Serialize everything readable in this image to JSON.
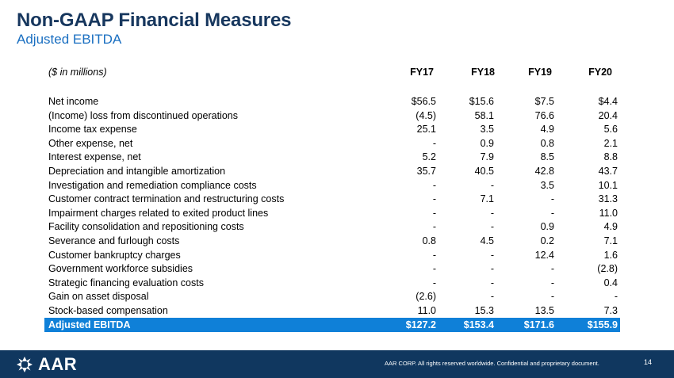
{
  "header": {
    "title": "Non-GAAP Financial Measures",
    "subtitle": "Adjusted EBITDA"
  },
  "table": {
    "unit_label": "($ in millions)",
    "columns": [
      "FY17",
      "FY18",
      "FY19",
      "FY20"
    ],
    "rows": [
      {
        "label": "Net income",
        "values": [
          "$56.5",
          "$15.6",
          "$7.5",
          "$4.4"
        ]
      },
      {
        "label": "(Income) loss from discontinued operations",
        "values": [
          "(4.5)",
          "58.1",
          "76.6",
          "20.4"
        ]
      },
      {
        "label": "Income tax expense",
        "values": [
          "25.1",
          "3.5",
          "4.9",
          "5.6"
        ]
      },
      {
        "label": "Other expense, net",
        "values": [
          "-",
          "0.9",
          "0.8",
          "2.1"
        ]
      },
      {
        "label": "Interest expense, net",
        "values": [
          "5.2",
          "7.9",
          "8.5",
          "8.8"
        ]
      },
      {
        "label": "Depreciation and intangible amortization",
        "values": [
          "35.7",
          "40.5",
          "42.8",
          "43.7"
        ]
      },
      {
        "label": "Investigation and remediation compliance costs",
        "values": [
          "-",
          "-",
          "3.5",
          "10.1"
        ]
      },
      {
        "label": "Customer contract termination and restructuring costs",
        "values": [
          "-",
          "7.1",
          "-",
          "31.3"
        ]
      },
      {
        "label": "Impairment charges related to exited product lines",
        "values": [
          "-",
          "-",
          "-",
          "11.0"
        ]
      },
      {
        "label": "Facility consolidation and repositioning costs",
        "values": [
          "-",
          "-",
          "0.9",
          "4.9"
        ]
      },
      {
        "label": "Severance and furlough costs",
        "values": [
          "0.8",
          "4.5",
          "0.2",
          "7.1"
        ]
      },
      {
        "label": "Customer bankruptcy charges",
        "values": [
          "-",
          "-",
          "12.4",
          "1.6"
        ]
      },
      {
        "label": "Government workforce subsidies",
        "values": [
          "-",
          "-",
          "-",
          "(2.8)"
        ]
      },
      {
        "label": "Strategic financing evaluation costs",
        "values": [
          "-",
          "-",
          "-",
          "0.4"
        ]
      },
      {
        "label": "Gain on asset disposal",
        "values": [
          "(2.6)",
          "-",
          "-",
          "-"
        ]
      },
      {
        "label": "Stock-based compensation",
        "values": [
          "11.0",
          "15.3",
          "13.5",
          "7.3"
        ]
      }
    ],
    "total": {
      "label": "Adjusted EBITDA",
      "values": [
        "$127.2",
        "$153.4",
        "$171.6",
        "$155.9"
      ]
    }
  },
  "footer": {
    "logo_text": "AAR",
    "copyright": "AAR CORP. All rights reserved worldwide. Confidential and proprietary document.",
    "page_number": "14"
  },
  "colors": {
    "title": "#17375e",
    "subtitle": "#1a6fc1",
    "total_row": "#0f80d8",
    "footer": "#10375f"
  }
}
